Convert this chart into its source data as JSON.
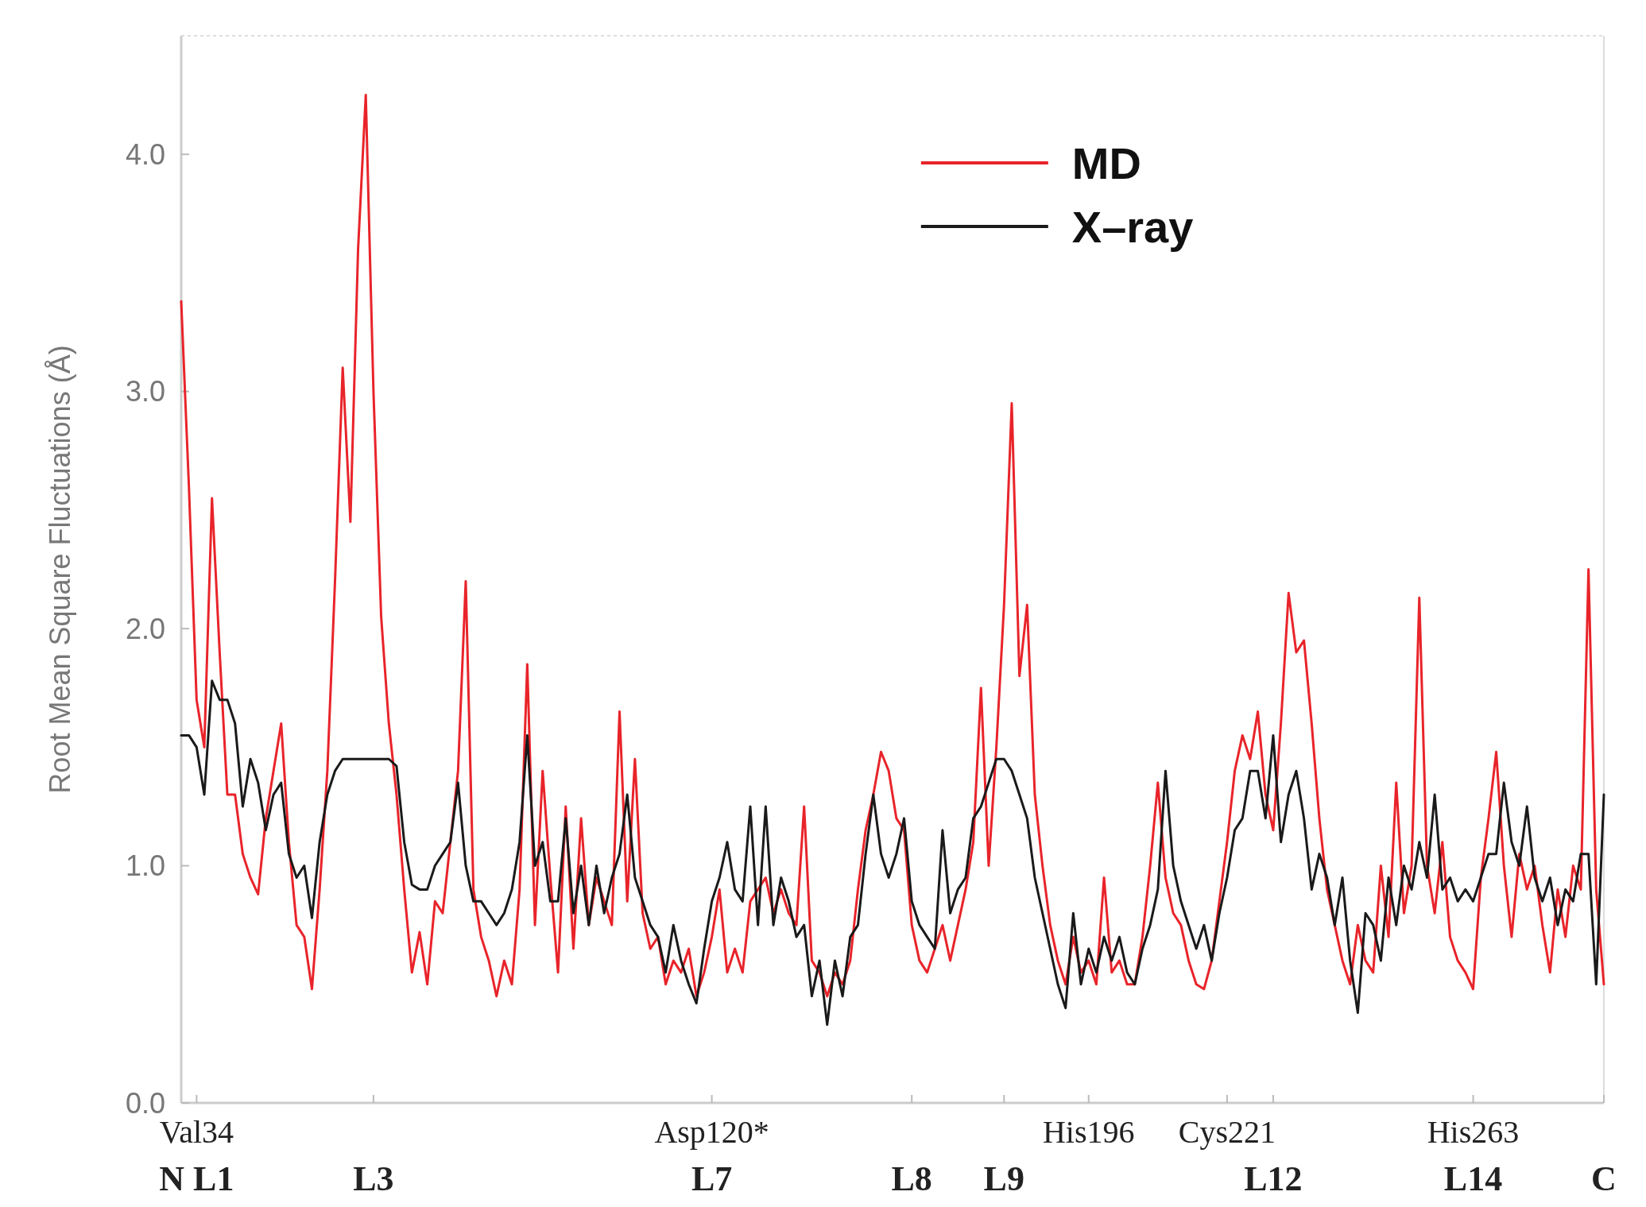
{
  "chart_data": {
    "type": "line",
    "ylabel": "Root Mean Square Fluctuations (Å)",
    "ylim": [
      0,
      4.5
    ],
    "categories": [
      null,
      null,
      "Val34\nN L1",
      null,
      null,
      null,
      null,
      null,
      null,
      null,
      null,
      null,
      null,
      null,
      null,
      null,
      null,
      null,
      null,
      null,
      null,
      null,
      null,
      null,
      null,
      "\nL3",
      null,
      null,
      null,
      null,
      null,
      null,
      null,
      null,
      null,
      null,
      null,
      null,
      null,
      null,
      null,
      null,
      null,
      null,
      null,
      null,
      null,
      null,
      null,
      null,
      null,
      null,
      null,
      null,
      null,
      null,
      null,
      null,
      null,
      null,
      null,
      null,
      null,
      null,
      null,
      null,
      null,
      null,
      null,
      "Asp120*\nL7",
      null,
      null,
      null,
      null,
      null,
      null,
      null,
      null,
      null,
      null,
      null,
      null,
      null,
      null,
      null,
      null,
      null,
      null,
      null,
      null,
      null,
      null,
      null,
      null,
      null,
      "\nL8",
      null,
      null,
      null,
      null,
      null,
      null,
      null,
      null,
      null,
      null,
      null,
      "\nL9",
      null,
      null,
      null,
      null,
      null,
      null,
      null,
      null,
      null,
      null,
      "His196",
      null,
      null,
      null,
      null,
      null,
      null,
      null,
      null,
      null,
      null,
      null,
      null,
      null,
      null,
      null,
      null,
      null,
      "Cys221",
      null,
      null,
      null,
      null,
      null,
      "\nL12",
      null,
      null,
      null,
      null,
      null,
      null,
      null,
      null,
      null,
      null,
      null,
      null,
      null,
      null,
      null,
      null,
      null,
      null,
      null,
      null,
      null,
      null,
      null,
      null,
      null,
      "His263\nL14",
      null,
      null,
      null,
      null,
      null,
      null,
      null,
      null,
      null,
      null,
      null,
      null,
      null,
      null,
      null,
      null,
      "\nC"
    ],
    "yticks": [
      {
        "value": 0,
        "label": "0.0"
      },
      {
        "value": 1,
        "label": "1.0"
      },
      {
        "value": 2,
        "label": "2.0"
      },
      {
        "value": 3,
        "label": "3.0"
      },
      {
        "value": 4,
        "label": "4.0"
      }
    ],
    "legend": "top right",
    "line_style": "solid",
    "marker": "none",
    "series": [
      {
        "name": "MD",
        "color": "#e8242a",
        "values": [
          3.38,
          2.6,
          1.7,
          1.5,
          2.55,
          1.9,
          1.3,
          1.3,
          1.05,
          0.95,
          0.88,
          1.2,
          1.4,
          1.6,
          1.1,
          0.75,
          0.7,
          0.48,
          0.9,
          1.4,
          2.2,
          3.1,
          2.45,
          3.6,
          4.25,
          3.0,
          2.05,
          1.6,
          1.3,
          0.9,
          0.55,
          0.72,
          0.5,
          0.85,
          0.8,
          1.1,
          1.4,
          2.2,
          0.9,
          0.7,
          0.6,
          0.45,
          0.6,
          0.5,
          0.9,
          1.85,
          0.75,
          1.4,
          0.95,
          0.55,
          1.25,
          0.65,
          1.2,
          0.75,
          0.95,
          0.85,
          0.75,
          1.65,
          0.85,
          1.45,
          0.8,
          0.65,
          0.7,
          0.5,
          0.6,
          0.55,
          0.65,
          0.45,
          0.55,
          0.7,
          0.9,
          0.55,
          0.65,
          0.55,
          0.85,
          0.9,
          0.95,
          0.8,
          0.9,
          0.8,
          0.75,
          1.25,
          0.6,
          0.55,
          0.45,
          0.55,
          0.5,
          0.6,
          0.9,
          1.15,
          1.3,
          1.48,
          1.4,
          1.2,
          1.15,
          0.75,
          0.6,
          0.55,
          0.65,
          0.75,
          0.6,
          0.75,
          0.9,
          1.1,
          1.75,
          1.0,
          1.5,
          2.1,
          2.95,
          1.8,
          2.1,
          1.3,
          1.0,
          0.75,
          0.6,
          0.5,
          0.7,
          0.55,
          0.6,
          0.5,
          0.95,
          0.55,
          0.6,
          0.5,
          0.5,
          0.7,
          1.0,
          1.35,
          0.95,
          0.8,
          0.75,
          0.6,
          0.5,
          0.48,
          0.6,
          0.85,
          1.1,
          1.4,
          1.55,
          1.45,
          1.65,
          1.3,
          1.15,
          1.6,
          2.15,
          1.9,
          1.95,
          1.6,
          1.2,
          0.9,
          0.75,
          0.6,
          0.5,
          0.75,
          0.6,
          0.55,
          1.0,
          0.7,
          1.35,
          0.8,
          1.0,
          2.13,
          1.0,
          0.8,
          1.1,
          0.7,
          0.6,
          0.55,
          0.48,
          0.95,
          1.2,
          1.48,
          1.0,
          0.7,
          1.05,
          0.9,
          1.0,
          0.75,
          0.55,
          0.9,
          0.7,
          1.0,
          0.9,
          2.25,
          0.9,
          0.5
        ]
      },
      {
        "name": "X–ray",
        "color": "#1a1a1a",
        "values": [
          1.55,
          1.55,
          1.5,
          1.3,
          1.78,
          1.7,
          1.7,
          1.6,
          1.25,
          1.45,
          1.35,
          1.15,
          1.3,
          1.35,
          1.05,
          0.95,
          1.0,
          0.78,
          1.1,
          1.3,
          1.4,
          1.45,
          1.45,
          1.45,
          1.45,
          1.45,
          1.45,
          1.45,
          1.42,
          1.1,
          0.92,
          0.9,
          0.9,
          1.0,
          1.05,
          1.1,
          1.35,
          1.0,
          0.85,
          0.85,
          0.8,
          0.75,
          0.8,
          0.9,
          1.1,
          1.55,
          1.0,
          1.1,
          0.85,
          0.85,
          1.2,
          0.8,
          1.0,
          0.75,
          1.0,
          0.8,
          0.95,
          1.05,
          1.3,
          0.95,
          0.85,
          0.75,
          0.7,
          0.55,
          0.75,
          0.6,
          0.5,
          0.42,
          0.65,
          0.85,
          0.95,
          1.1,
          0.9,
          0.85,
          1.25,
          0.75,
          1.25,
          0.75,
          0.95,
          0.85,
          0.7,
          0.75,
          0.45,
          0.6,
          0.33,
          0.6,
          0.45,
          0.7,
          0.75,
          1.05,
          1.3,
          1.05,
          0.95,
          1.05,
          1.2,
          0.85,
          0.75,
          0.7,
          0.65,
          1.15,
          0.8,
          0.9,
          0.95,
          1.2,
          1.25,
          1.35,
          1.45,
          1.45,
          1.4,
          1.3,
          1.2,
          0.95,
          0.8,
          0.65,
          0.5,
          0.4,
          0.8,
          0.5,
          0.65,
          0.55,
          0.7,
          0.6,
          0.7,
          0.55,
          0.5,
          0.65,
          0.75,
          0.9,
          1.4,
          1.0,
          0.85,
          0.75,
          0.65,
          0.75,
          0.6,
          0.8,
          0.95,
          1.15,
          1.2,
          1.4,
          1.4,
          1.2,
          1.55,
          1.1,
          1.3,
          1.4,
          1.2,
          0.9,
          1.05,
          0.95,
          0.75,
          0.95,
          0.6,
          0.38,
          0.8,
          0.75,
          0.6,
          0.95,
          0.75,
          1.0,
          0.9,
          1.1,
          0.95,
          1.3,
          0.9,
          0.95,
          0.85,
          0.9,
          0.85,
          0.95,
          1.05,
          1.05,
          1.35,
          1.1,
          1.0,
          1.25,
          0.95,
          0.85,
          0.95,
          0.75,
          0.9,
          0.85,
          1.05,
          1.05,
          0.5,
          1.3
        ]
      }
    ]
  }
}
